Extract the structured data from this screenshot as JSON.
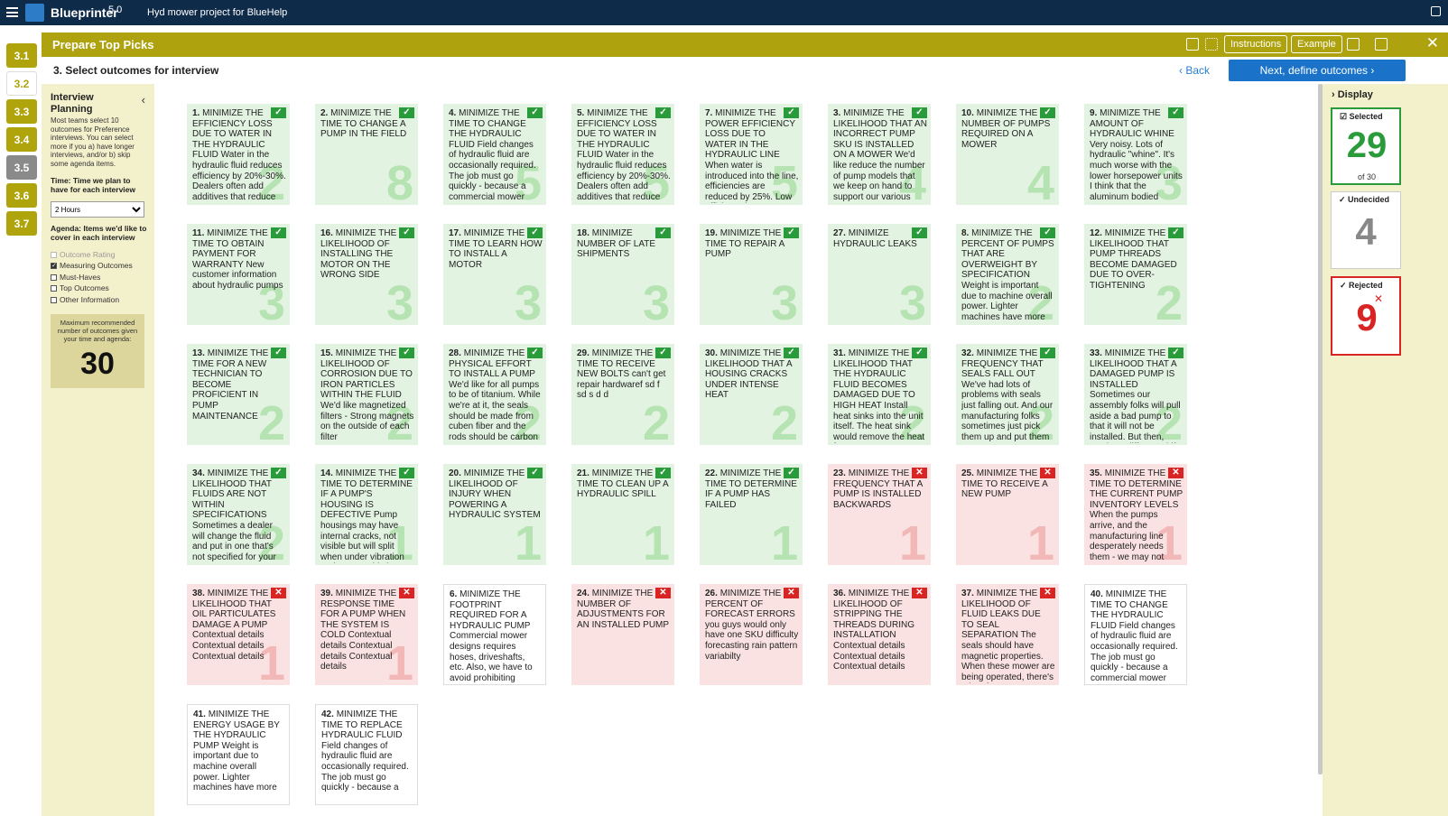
{
  "app": {
    "name": "Blueprinter",
    "version": "5.0",
    "project": "Hyd mower project for BlueHelp"
  },
  "steps": [
    "3.1",
    "3.2",
    "3.3",
    "3.4",
    "3.5",
    "3.6",
    "3.7"
  ],
  "header": {
    "title": "Prepare Top Picks",
    "instructions": "Instructions",
    "example": "Example"
  },
  "subheader": {
    "title": "3. Select outcomes for interview",
    "back": "Back",
    "next": "Next, define outcomes"
  },
  "left_panel": {
    "title": "Interview Planning",
    "description": "Most teams select 10 outcomes for Preference interviews. You can select more if you a) have longer interviews, and/or b) skip some agenda items.",
    "time_label": "Time: Time we plan to have for each interview",
    "time_value": "2 Hours",
    "agenda_label": "Agenda: Items we'd like to cover in each interview",
    "agenda": [
      {
        "label": "Outcome Rating",
        "checked": false,
        "disabled": true
      },
      {
        "label": "Measuring Outcomes",
        "checked": true,
        "disabled": false
      },
      {
        "label": "Must-Haves",
        "checked": false,
        "disabled": false
      },
      {
        "label": "Top Outcomes",
        "checked": false,
        "disabled": false
      },
      {
        "label": "Other Information",
        "checked": false,
        "disabled": false
      }
    ],
    "max_text": "Maximum recommended number of outcomes given your time and agenda:",
    "max_value": "30"
  },
  "display_panel": {
    "title": "Display",
    "selected_label": "Selected",
    "selected_count": "29",
    "selected_of": "of 30",
    "undecided_label": "Undecided",
    "undecided_count": "4",
    "rejected_label": "Rejected",
    "rejected_count": "9"
  },
  "colors": {
    "header": "#aea20f",
    "topbar": "#0f2b4a",
    "selected": "#2a9b3a",
    "rejected": "#d92424",
    "link": "#1a73c9"
  },
  "cards": [
    {
      "num": "1.",
      "text": "MINIMIZE THE EFFICIENCY LOSS DUE TO WATER IN THE HYDRAULIC FLUID Water in the hydraulic fluid reduces efficiency by 20%-30%. Dealers often add additives that reduce",
      "score": "2",
      "status": "sel"
    },
    {
      "num": "2.",
      "text": "MINIMIZE THE TIME TO CHANGE A PUMP IN THE FIELD",
      "score": "8",
      "status": "sel"
    },
    {
      "num": "4.",
      "text": "MINIMIZE THE TIME TO CHANGE THE HYDRAULIC FLUID Field changes of hydraulic fluid are occasionally required. The job must go quickly - because a commercial mower",
      "score": "5",
      "status": "sel"
    },
    {
      "num": "5.",
      "text": "MINIMIZE THE EFFICIENCY LOSS DUE TO WATER IN THE HYDRAULIC FLUID Water in the hydraulic fluid reduces efficiency by 20%-30%. Dealers often add additives that reduce",
      "score": "5",
      "status": "sel"
    },
    {
      "num": "7.",
      "text": "MINIMIZE THE POWER EFFICIENCY LOSS DUE TO WATER IN THE HYDRAULIC LINE When water is introduced into the line, efficiencies are reduced by 25%. Low efficiency isn't a",
      "score": "5",
      "status": "sel"
    },
    {
      "num": "3.",
      "text": "MINIMIZE THE LIKELIHOOD THAT AN INCORRECT PUMP SKU IS INSTALLED ON A MOWER We'd like reduce the number of pump models that we keep on hand to support our various",
      "score": "4",
      "status": "sel"
    },
    {
      "num": "10.",
      "text": "MINIMIZE THE NUMBER OF PUMPS REQUIRED ON A MOWER",
      "score": "4",
      "status": "sel"
    },
    {
      "num": "9.",
      "text": "MINIMIZE THE AMOUNT OF HYDRAULIC WHINE Very noisy. Lots of hydraulic \"whine\". It's much worse with the lower horsepower units I think that the aluminum bodied",
      "score": "3",
      "status": "sel"
    },
    {
      "num": "11.",
      "text": "MINIMIZE THE TIME TO OBTAIN PAYMENT FOR WARRANTY New customer information about hydraulic pumps",
      "score": "3",
      "status": "sel"
    },
    {
      "num": "16.",
      "text": "MINIMIZE THE LIKELIHOOD OF INSTALLING THE MOTOR ON THE WRONG SIDE",
      "score": "3",
      "status": "sel"
    },
    {
      "num": "17.",
      "text": "MINIMIZE THE TIME TO LEARN HOW TO INSTALL A MOTOR",
      "score": "3",
      "status": "sel"
    },
    {
      "num": "18.",
      "text": "MINIMIZE NUMBER OF LATE SHIPMENTS",
      "score": "3",
      "status": "sel"
    },
    {
      "num": "19.",
      "text": "MINIMIZE THE TIME TO REPAIR A PUMP",
      "score": "3",
      "status": "sel"
    },
    {
      "num": "27.",
      "text": "MINIMIZE HYDRAULIC LEAKS",
      "score": "3",
      "status": "sel"
    },
    {
      "num": "8.",
      "text": "MINIMIZE THE PERCENT OF PUMPS THAT ARE OVERWEIGHT BY SPECIFICATION Weight is important due to machine overall power. Lighter machines have more",
      "score": "2",
      "status": "sel"
    },
    {
      "num": "12.",
      "text": "MINIMIZE THE LIKELIHOOD THAT PUMP THREADS BECOME DAMAGED DUE TO OVER-TIGHTENING",
      "score": "2",
      "status": "sel"
    },
    {
      "num": "13.",
      "text": "MINIMIZE THE TIME FOR A NEW TECHNICIAN TO BECOME PROFICIENT IN PUMP MAINTENANCE",
      "score": "2",
      "status": "sel"
    },
    {
      "num": "15.",
      "text": "MINIMIZE THE LIKELIHOOD OF CORROSION DUE TO IRON PARTICLES WITHIN THE FLUID We'd like magnetized filters - Strong magnets on the outside of each filter",
      "score": "2",
      "status": "sel"
    },
    {
      "num": "28.",
      "text": "MINIMIZE THE PHYSICAL EFFORT TO INSTALL A PUMP We'd like for all pumps to be of titanium. While we're at it, the seals should be made from cuben fiber and the rods should be carbon",
      "score": "2",
      "status": "sel"
    },
    {
      "num": "29.",
      "text": "MINIMIZE THE TIME TO RECEIVE NEW BOLTS can't get repair hardwaref sd f sd s d d",
      "score": "2",
      "status": "sel"
    },
    {
      "num": "30.",
      "text": "MINIMIZE THE LIKELIHOOD THAT A HOUSING CRACKS UNDER INTENSE HEAT",
      "score": "2",
      "status": "sel"
    },
    {
      "num": "31.",
      "text": "MINIMIZE THE LIKELIHOOD THAT THE HYDRAULIC FLUID BECOMES DAMAGED DUE TO HIGH HEAT Install heat sinks into the unit itself. The heat sink would remove the heat from",
      "score": "2",
      "status": "sel"
    },
    {
      "num": "32.",
      "text": "MINIMIZE THE FREQUENCY THAT SEALS FALL OUT We've had lots of problems with seals just falling out. And our manufacturing folks sometimes just pick them up and put them",
      "score": "2",
      "status": "sel"
    },
    {
      "num": "33.",
      "text": "MINIMIZE THE LIKELIHOOD THAT A DAMAGED PUMP IS INSTALLED Sometimes our assembly folks will pull aside a bad pump to that it will not be installed. But then, maybe a different shift",
      "score": "2",
      "status": "sel"
    },
    {
      "num": "34.",
      "text": "MINIMIZE THE LIKELIHOOD THAT FLUIDS ARE NOT WITHIN SPECIFICATIONS Sometimes a dealer will change the fluid and put in one that's not specified for your",
      "score": "2",
      "status": "sel"
    },
    {
      "num": "14.",
      "text": "MINIMIZE THE TIME TO DETERMINE IF A PUMP'S HOUSING IS DEFECTIVE Pump housings may have internal cracks, not visible but will split when under vibration and stress. This is an",
      "score": "1",
      "status": "sel"
    },
    {
      "num": "20.",
      "text": "MINIMIZE THE LIKELIHOOD OF INJURY WHEN POWERING A HYDRAULIC SYSTEM",
      "score": "1",
      "status": "sel"
    },
    {
      "num": "21.",
      "text": "MINIMIZE THE TIME TO CLEAN UP A HYDRAULIC SPILL",
      "score": "1",
      "status": "sel"
    },
    {
      "num": "22.",
      "text": "MINIMIZE THE TIME TO DETERMINE IF A PUMP HAS FAILED",
      "score": "1",
      "status": "sel"
    },
    {
      "num": "23.",
      "text": "MINIMIZE THE FREQUENCY THAT A PUMP IS INSTALLED BACKWARDS",
      "score": "1",
      "status": "rej"
    },
    {
      "num": "25.",
      "text": "MINIMIZE THE TIME TO RECEIVE A NEW PUMP",
      "score": "1",
      "status": "rej"
    },
    {
      "num": "35.",
      "text": "MINIMIZE THE TIME TO DETERMINE THE CURRENT PUMP INVENTORY LEVELS When the pumps arrive, and the manufacturing line desperately needs them - we may not",
      "score": "1",
      "status": "rej"
    },
    {
      "num": "38.",
      "text": "MINIMIZE THE LIKELIHOOD THAT OIL PARTICULATES DAMAGE A PUMP Contextual details Contextual details Contextual details",
      "score": "1",
      "status": "rej"
    },
    {
      "num": "39.",
      "text": "MINIMIZE THE RESPONSE TIME FOR A PUMP WHEN THE SYSTEM IS COLD Contextual details Contextual details Contextual details",
      "score": "1",
      "status": "rej"
    },
    {
      "num": "6.",
      "text": "MINIMIZE THE FOOTPRINT REQUIRED FOR A HYDRAULIC PUMP Commercial mower designs requires hoses, driveshafts, etc. Also, we have to avoid prohibiting access to",
      "score": "",
      "status": "und"
    },
    {
      "num": "24.",
      "text": "MINIMIZE THE NUMBER OF ADJUSTMENTS FOR AN INSTALLED PUMP",
      "score": "",
      "status": "rej"
    },
    {
      "num": "26.",
      "text": "MINIMIZE THE PERCENT OF FORECAST ERRORS you guys would only have one SKU difficulty forecasting rain pattern variabilty",
      "score": "",
      "status": "rej"
    },
    {
      "num": "36.",
      "text": "MINIMIZE THE LIKELIHOOD OF STRIPPING THE THREADS DURING INSTALLATION Contextual details Contextual details Contextual details",
      "score": "",
      "status": "rej"
    },
    {
      "num": "37.",
      "text": "MINIMIZE THE LIKELIHOOD OF FLUID LEAKS DUE TO SEAL SEPARATION The seals should have magnetic properties. When these mower are being operated, there's a lot of",
      "score": "",
      "status": "rej"
    },
    {
      "num": "40.",
      "text": "MINIMIZE THE TIME TO CHANGE THE HYDRAULIC FLUID Field changes of hydraulic fluid are occasionally required. The job must go quickly - because a commercial mower",
      "score": "",
      "status": "und"
    },
    {
      "num": "41.",
      "text": "MINIMIZE THE ENERGY USAGE BY THE HYDRAULIC PUMP Weight is important due to machine overall power. Lighter machines have more",
      "score": "",
      "status": "und"
    },
    {
      "num": "42.",
      "text": "MINIMIZE THE TIME TO REPLACE HYDRAULIC FLUID Field changes of hydraulic fluid are occasionally required. The job must go quickly - because a",
      "score": "",
      "status": "und"
    }
  ]
}
